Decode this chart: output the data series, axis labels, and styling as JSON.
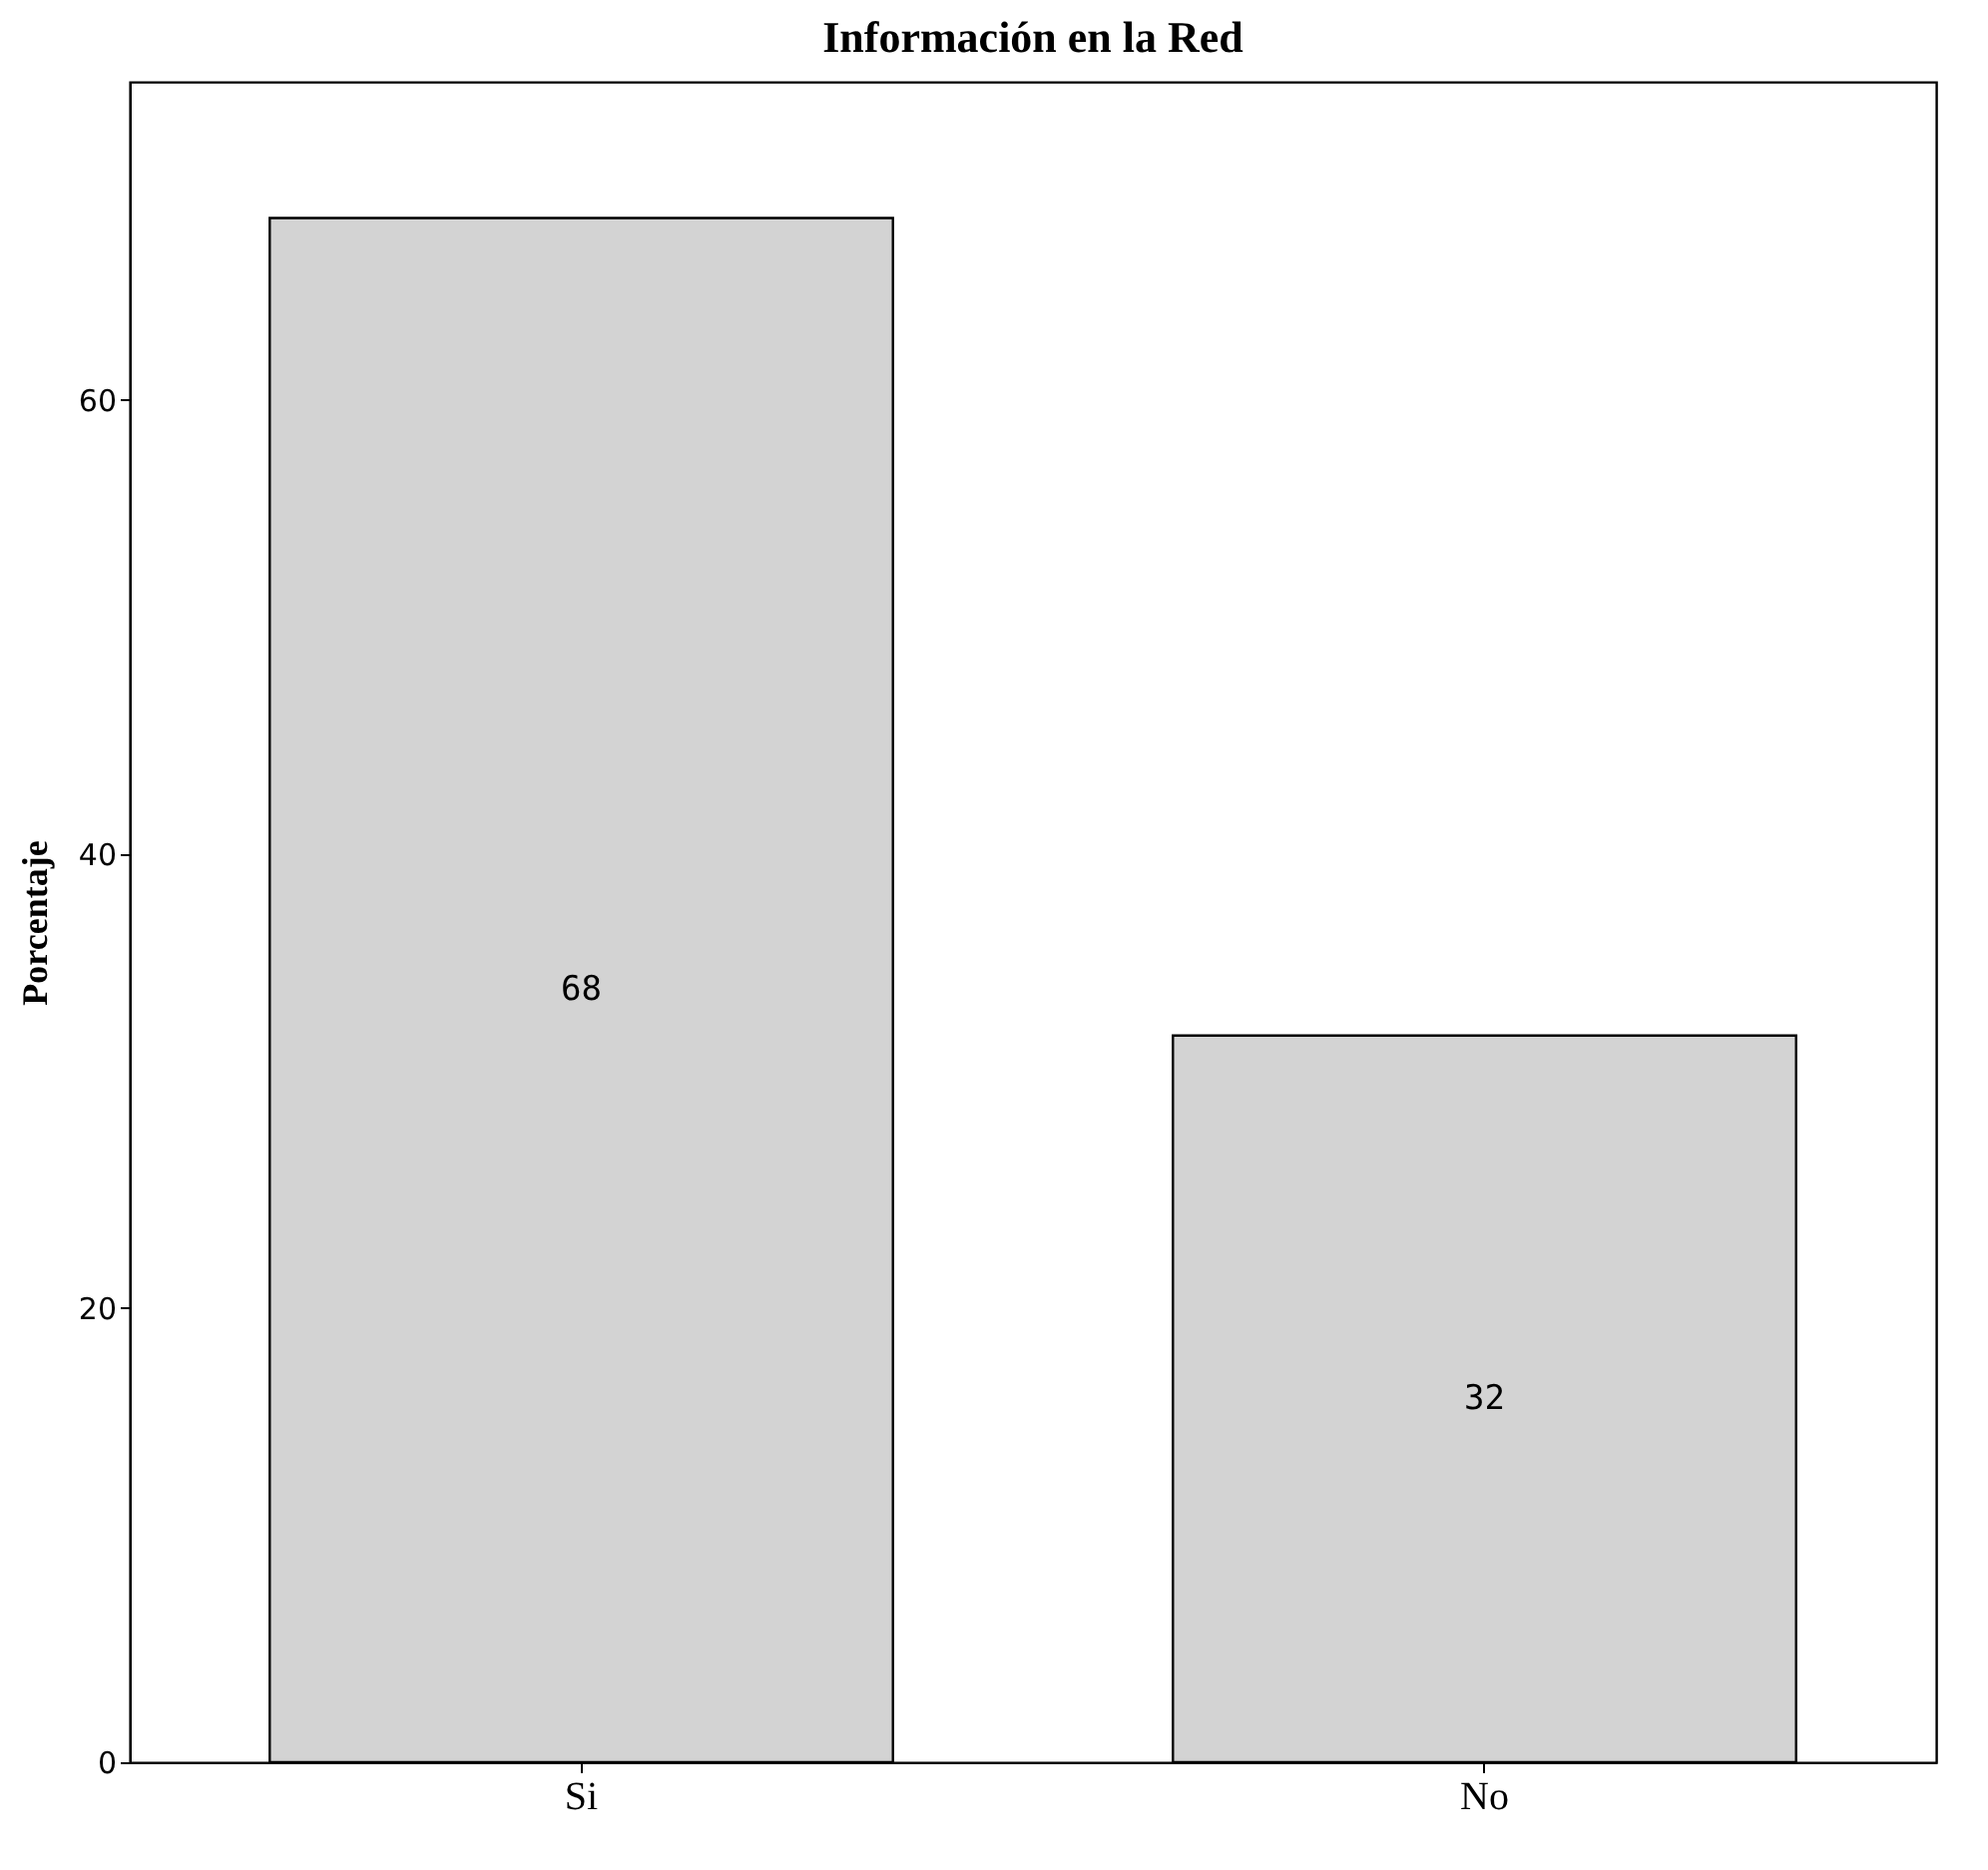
{
  "chart_data": {
    "type": "bar",
    "title": "Información en la Red",
    "ylabel": "Porcentaje",
    "categories": [
      "Si",
      "No"
    ],
    "values": [
      68,
      32
    ],
    "color": "#d3d3d3",
    "ylim": [
      0,
      74
    ],
    "yticks": [
      0,
      20,
      40,
      60
    ],
    "grid": false,
    "data_labels": true
  }
}
